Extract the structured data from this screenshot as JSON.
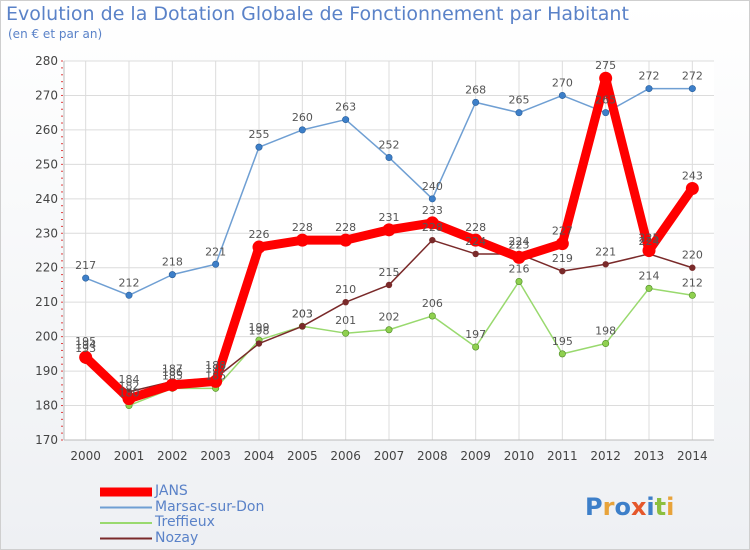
{
  "title": "Evolution de la Dotation Globale de Fonctionnement par Habitant",
  "subtitle": "(en € et par an)",
  "logo": {
    "text": "Proxiti",
    "colors": [
      "#3d7fc9",
      "#e8a33a",
      "#3d7fc9",
      "#e5572b",
      "#3d7fc9",
      "#8cbf3f",
      "#e8a33a"
    ]
  },
  "chart_data": {
    "type": "line",
    "x": [
      2000,
      2001,
      2002,
      2003,
      2004,
      2005,
      2006,
      2007,
      2008,
      2009,
      2010,
      2011,
      2012,
      2013,
      2014
    ],
    "ylim": [
      170,
      280
    ],
    "yticks": [
      170,
      180,
      190,
      200,
      210,
      220,
      230,
      240,
      250,
      260,
      270,
      280
    ],
    "grid": true,
    "legend_position": "bottom-left",
    "series": [
      {
        "name": "JANS",
        "color": "#ff0000",
        "values": [
          194,
          182,
          186,
          187,
          226,
          228,
          228,
          231,
          233,
          228,
          223,
          227,
          275,
          225,
          243
        ]
      },
      {
        "name": "Marsac-sur-Don",
        "color": "#6f9fd3",
        "values": [
          217,
          212,
          218,
          221,
          255,
          260,
          263,
          252,
          240,
          268,
          265,
          270,
          265,
          272,
          272
        ]
      },
      {
        "name": "Treffieux",
        "color": "#99d96e",
        "values": [
          195,
          180,
          185,
          185,
          199,
          203,
          201,
          202,
          206,
          197,
          216,
          195,
          198,
          214,
          212
        ]
      },
      {
        "name": "Nozay",
        "color": "#7a2a2a",
        "values": [
          193,
          184,
          187,
          188,
          198,
          203,
          210,
          215,
          228,
          224,
          224,
          219,
          221,
          224,
          220
        ]
      }
    ]
  }
}
